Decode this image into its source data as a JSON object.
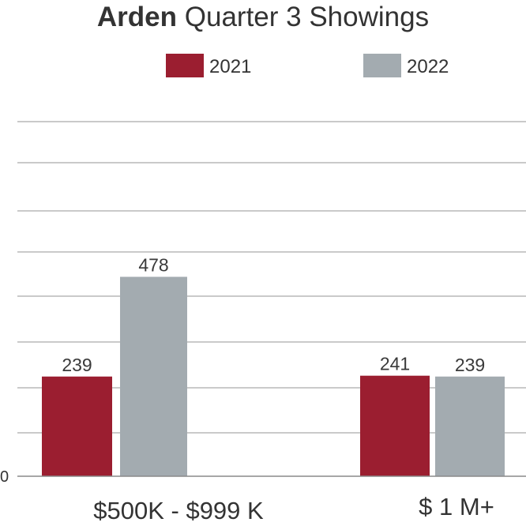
{
  "chart_data": {
    "type": "bar",
    "title_bold": "Arden",
    "title_rest": " Quarter 3 Showings",
    "categories": [
      "$500K - $999 K",
      "$ 1 M+"
    ],
    "series": [
      {
        "name": "2021",
        "values": [
          239,
          241
        ],
        "color": "#9b1e30"
      },
      {
        "name": "2022",
        "values": [
          478,
          239
        ],
        "color": "#a3abb0"
      }
    ],
    "y_tick_labels": [
      "0"
    ],
    "ylim": [
      0,
      850
    ],
    "grid": true,
    "legend_position": "top-center",
    "data_labels": true
  }
}
